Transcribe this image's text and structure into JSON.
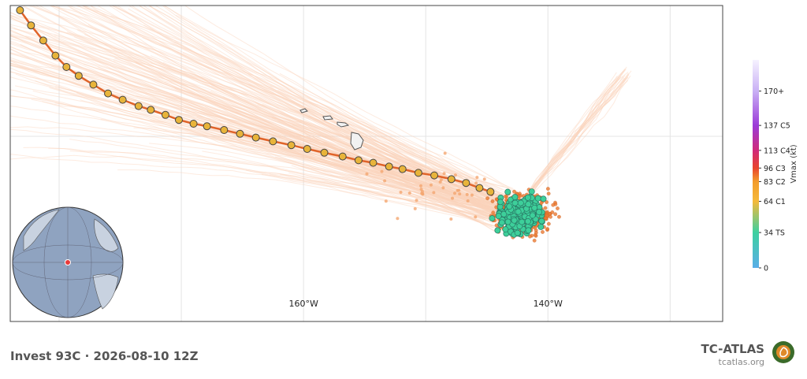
{
  "map": {
    "lon_range": [
      -184,
      -125.7
    ],
    "lat_ref": 20,
    "lon_grid": [
      -180,
      -170,
      -160,
      -150,
      -140,
      -130
    ],
    "lat_grid": [
      20
    ],
    "lon_ticks": [
      {
        "value": -160,
        "label": "160°W"
      },
      {
        "value": -140,
        "label": "140°W"
      }
    ],
    "track": {
      "color": "#e8b43a",
      "line_color": "#e0642a",
      "lon": [
        -183.2,
        -182.3,
        -181.3,
        -180.3,
        -179.4,
        -178.4,
        -177.2,
        -176.0,
        -174.8,
        -173.5,
        -172.5,
        -171.3,
        -170.2,
        -169.0,
        -167.9,
        -166.5,
        -165.2,
        -163.9,
        -162.5,
        -161.0,
        -159.7,
        -158.3,
        -156.8,
        -155.5,
        -154.3,
        -153.0,
        -151.9,
        -150.6,
        -149.3,
        -147.9,
        -146.7,
        -145.6,
        -144.7
      ],
      "lat": [
        30.0,
        28.8,
        27.6,
        26.4,
        25.5,
        24.8,
        24.1,
        23.4,
        22.9,
        22.4,
        22.1,
        21.7,
        21.3,
        21.0,
        20.8,
        20.5,
        20.2,
        19.9,
        19.6,
        19.3,
        19.0,
        18.7,
        18.4,
        18.1,
        17.9,
        17.6,
        17.4,
        17.1,
        16.9,
        16.6,
        16.3,
        15.9,
        15.6
      ]
    }
  },
  "colorbar": {
    "title": "Vmax (kt)",
    "range": [
      0,
      200
    ],
    "ticks": [
      {
        "value": 0,
        "label": "0"
      },
      {
        "value": 34,
        "label": "34 TS"
      },
      {
        "value": 64,
        "label": "64 C1"
      },
      {
        "value": 83,
        "label": "83 C2"
      },
      {
        "value": 96,
        "label": "96 C3"
      },
      {
        "value": 113,
        "label": "113 C4"
      },
      {
        "value": 137,
        "label": "137 C5"
      },
      {
        "value": 170,
        "label": "170+"
      }
    ],
    "colors": [
      "#5aaee8",
      "#3dd0a0",
      "#f5b93a",
      "#f39c2a",
      "#e8442c",
      "#d02a7a",
      "#9b3bd8",
      "#c9b0f5"
    ]
  },
  "footer": {
    "title": "Invest 93C · 2026-08-10 12Z",
    "brand": "TC-ATLAS",
    "url": "tcatlas.org"
  }
}
